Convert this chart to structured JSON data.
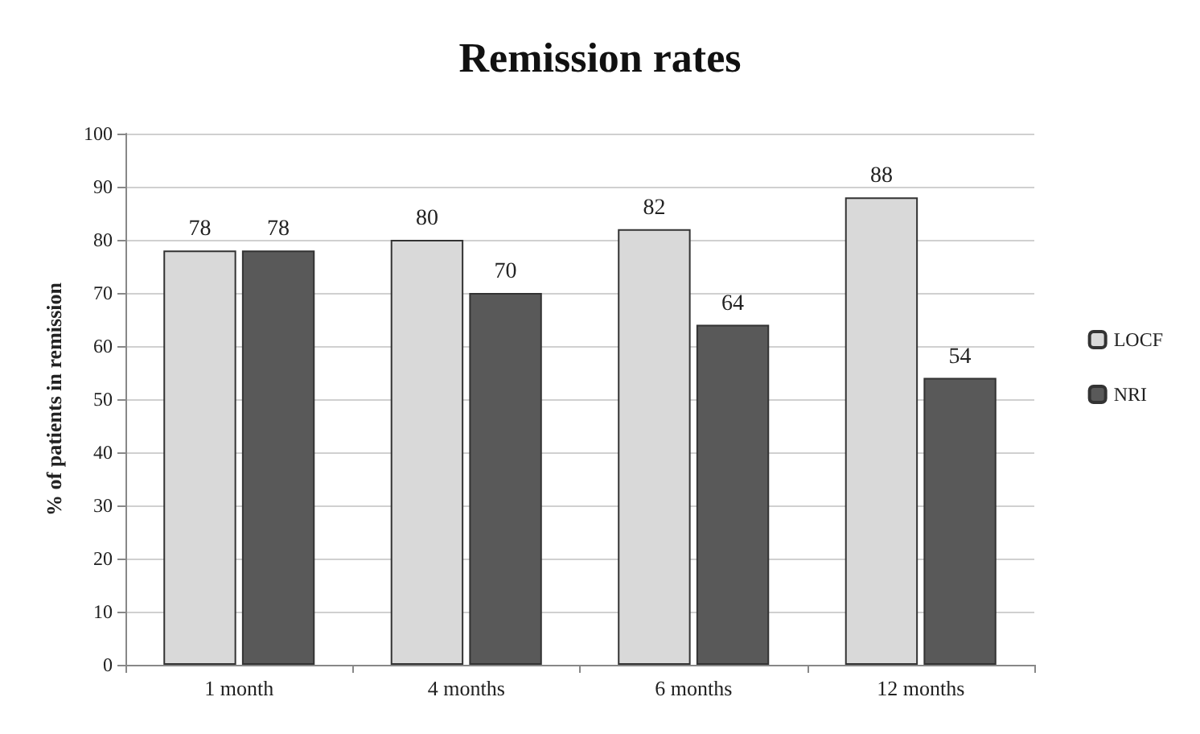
{
  "chart_data": {
    "type": "bar",
    "title": "Remission rates",
    "ylabel": "% of patients in remission",
    "categories": [
      "1 month",
      "4 months",
      "6 months",
      "12 months"
    ],
    "series": [
      {
        "name": "LOCF",
        "color": "#d9d9d9",
        "values": [
          78,
          80,
          82,
          88
        ]
      },
      {
        "name": "NRI",
        "color": "#595959",
        "values": [
          78,
          70,
          64,
          54
        ]
      }
    ],
    "ylim": [
      0,
      100
    ],
    "yticks": [
      0,
      10,
      20,
      30,
      40,
      50,
      60,
      70,
      80,
      90,
      100
    ],
    "grid": "y",
    "legend": "right",
    "data_labels": true
  }
}
